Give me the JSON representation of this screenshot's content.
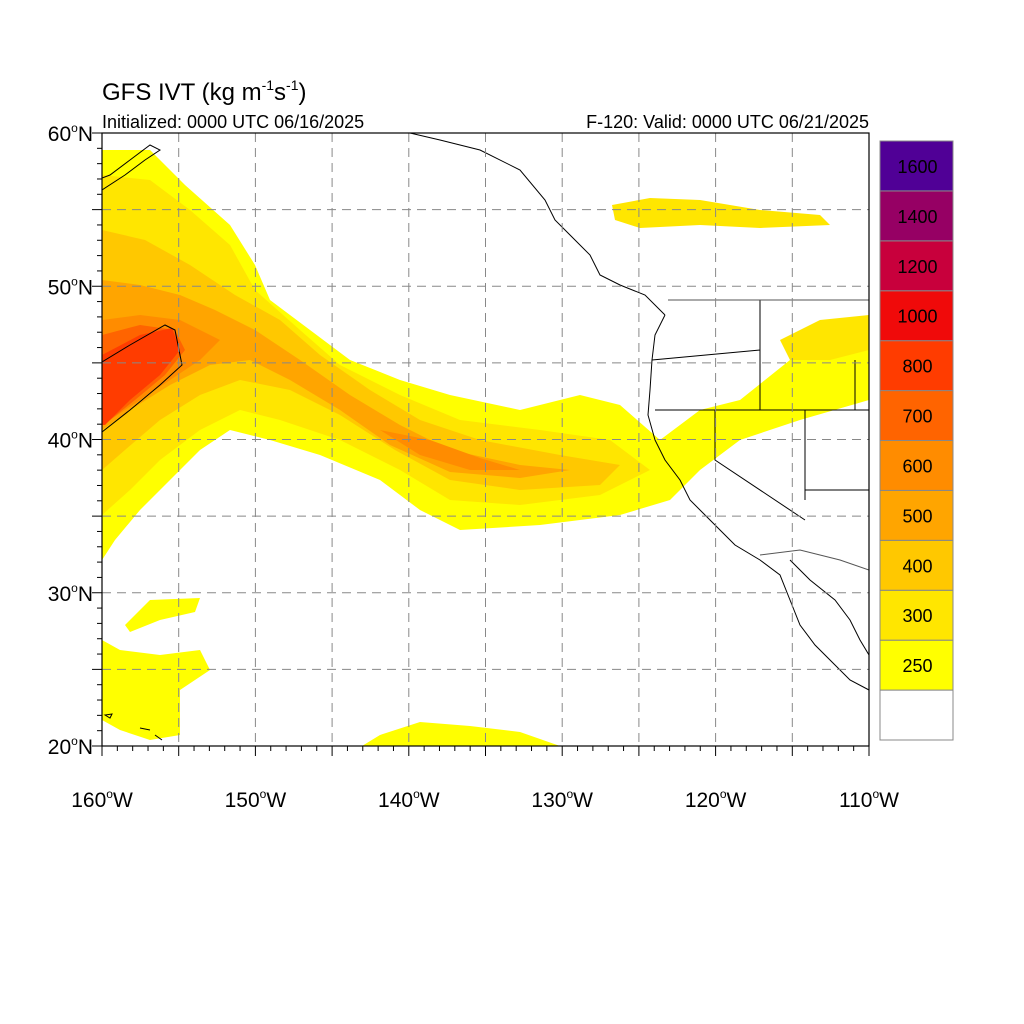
{
  "header": {
    "title_main": "GFS IVT (kg m",
    "title_sup1": "-1",
    "title_mid": "s",
    "title_sup2": "-1",
    "title_end": ")",
    "init_text": "Initialized: 0000 UTC 06/16/2025",
    "valid_text": "F-120: Valid: 0000 UTC 06/21/2025"
  },
  "map": {
    "projection": "lat-lon",
    "lon_range": [
      -160,
      -110
    ],
    "lat_range": [
      20,
      60
    ],
    "grid": "dashed",
    "lat_ticks": [
      {
        "deg": "60",
        "hemi": "N",
        "value": 60
      },
      {
        "deg": "50",
        "hemi": "N",
        "value": 50
      },
      {
        "deg": "40",
        "hemi": "N",
        "value": 40
      },
      {
        "deg": "30",
        "hemi": "N",
        "value": 30
      },
      {
        "deg": "20",
        "hemi": "N",
        "value": 20
      }
    ],
    "lon_ticks": [
      {
        "deg": "160",
        "hemi": "W",
        "value": -160
      },
      {
        "deg": "150",
        "hemi": "W",
        "value": -150
      },
      {
        "deg": "140",
        "hemi": "W",
        "value": -140
      },
      {
        "deg": "130",
        "hemi": "W",
        "value": -130
      },
      {
        "deg": "120",
        "hemi": "W",
        "value": -120
      },
      {
        "deg": "110",
        "hemi": "W",
        "value": -110
      }
    ]
  },
  "colorbar": {
    "placement": "right",
    "levels": [
      {
        "label": "250",
        "color": "#ffff00"
      },
      {
        "label": "300",
        "color": "#ffe600"
      },
      {
        "label": "400",
        "color": "#ffc800"
      },
      {
        "label": "500",
        "color": "#ffa500"
      },
      {
        "label": "600",
        "color": "#ff8c00"
      },
      {
        "label": "700",
        "color": "#ff6400"
      },
      {
        "label": "800",
        "color": "#ff3c00"
      },
      {
        "label": "1000",
        "color": "#f00a0a"
      },
      {
        "label": "1200",
        "color": "#c8003c"
      },
      {
        "label": "1400",
        "color": "#960064"
      },
      {
        "label": "1600",
        "color": "#500096"
      }
    ],
    "below_color": "#ffffff"
  }
}
